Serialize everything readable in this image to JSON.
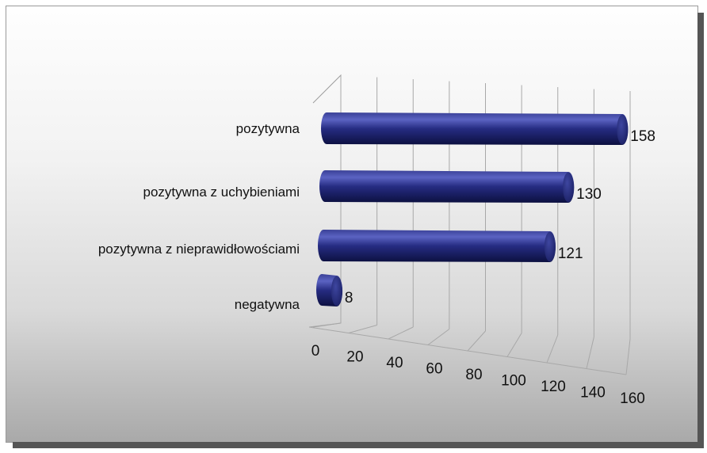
{
  "chart_data": {
    "type": "bar",
    "orientation": "horizontal",
    "style": "3d-cylinder",
    "categories": [
      "pozytywna",
      "pozytywna z uchybieniami",
      "pozytywna z nieprawidłowościami",
      "negatywna"
    ],
    "values": [
      158,
      130,
      121,
      8
    ],
    "x_ticks": [
      "0",
      "20",
      "40",
      "60",
      "80",
      "100",
      "120",
      "140",
      "160"
    ],
    "xlim": [
      0,
      160
    ],
    "grid": true,
    "legend": "none",
    "bar_color": "#232a78",
    "bar_highlight": "#5b63c2"
  }
}
